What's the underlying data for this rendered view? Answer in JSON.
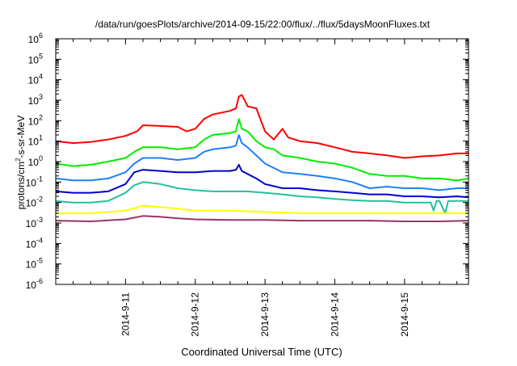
{
  "chart_data": {
    "type": "line",
    "title": "/data/run/goesPlots/archive/2014-09-15/22:00/flux/../flux/5daysMoonFluxes.txt",
    "xlabel": "Coordinated Universal Time (UTC)",
    "ylabel": {
      "base": "protons/cm",
      "sup": "2",
      "rest": "-s-sr-MeV"
    },
    "y_scale": "log",
    "ylim": [
      1e-06,
      1000000.0
    ],
    "y_ticks": [
      {
        "value": 1e-06,
        "base": "10",
        "exp": "-6"
      },
      {
        "value": 1e-05,
        "base": "10",
        "exp": "-5"
      },
      {
        "value": 0.0001,
        "base": "10",
        "exp": "-4"
      },
      {
        "value": 0.001,
        "base": "10",
        "exp": "-3"
      },
      {
        "value": 0.01,
        "base": "10",
        "exp": "-2"
      },
      {
        "value": 0.1,
        "base": "10",
        "exp": "-1"
      },
      {
        "value": 1.0,
        "base": "10",
        "exp": "0"
      },
      {
        "value": 10.0,
        "base": "10",
        "exp": "1"
      },
      {
        "value": 100.0,
        "base": "10",
        "exp": "2"
      },
      {
        "value": 1000.0,
        "base": "10",
        "exp": "3"
      },
      {
        "value": 10000.0,
        "base": "10",
        "exp": "4"
      },
      {
        "value": 100000.0,
        "base": "10",
        "exp": "5"
      },
      {
        "value": 1000000.0,
        "base": "10",
        "exp": "6"
      }
    ],
    "xlim": [
      "2014-09-10 00:00",
      "2014-09-15 22:00"
    ],
    "x_ticks": [
      {
        "date": "2014-09-11 00:00",
        "label": "2014-9-11"
      },
      {
        "date": "2014-09-12 00:00",
        "label": "2014-9-12"
      },
      {
        "date": "2014-09-13 00:00",
        "label": "2014-9-13"
      },
      {
        "date": "2014-09-14 00:00",
        "label": "2014-9-14"
      },
      {
        "date": "2014-09-15 00:00",
        "label": "2014-9-15"
      }
    ],
    "grid": false,
    "legend": "none",
    "series": [
      {
        "color": "#ff0000",
        "points": [
          [
            "2014-09-10 00:00",
            10
          ],
          [
            "2014-09-10 06:00",
            8
          ],
          [
            "2014-09-10 12:00",
            9
          ],
          [
            "2014-09-10 18:00",
            12
          ],
          [
            "2014-09-11 00:00",
            18
          ],
          [
            "2014-09-11 04:00",
            30
          ],
          [
            "2014-09-11 06:00",
            60
          ],
          [
            "2014-09-11 12:00",
            55
          ],
          [
            "2014-09-11 18:00",
            50
          ],
          [
            "2014-09-11 21:00",
            30
          ],
          [
            "2014-09-12 00:00",
            40
          ],
          [
            "2014-09-12 03:00",
            120
          ],
          [
            "2014-09-12 06:00",
            200
          ],
          [
            "2014-09-12 12:00",
            300
          ],
          [
            "2014-09-12 14:00",
            400
          ],
          [
            "2014-09-12 15:00",
            1500
          ],
          [
            "2014-09-12 16:00",
            1800
          ],
          [
            "2014-09-12 17:00",
            1000
          ],
          [
            "2014-09-12 18:00",
            500
          ],
          [
            "2014-09-12 21:00",
            400
          ],
          [
            "2014-09-13 00:00",
            30
          ],
          [
            "2014-09-13 03:00",
            12
          ],
          [
            "2014-09-13 06:00",
            40
          ],
          [
            "2014-09-13 08:00",
            15
          ],
          [
            "2014-09-13 12:00",
            10
          ],
          [
            "2014-09-13 18:00",
            8
          ],
          [
            "2014-09-14 00:00",
            5
          ],
          [
            "2014-09-14 06:00",
            3
          ],
          [
            "2014-09-14 12:00",
            2.5
          ],
          [
            "2014-09-14 18:00",
            2
          ],
          [
            "2014-09-15 00:00",
            1.5
          ],
          [
            "2014-09-15 06:00",
            1.8
          ],
          [
            "2014-09-15 12:00",
            2
          ],
          [
            "2014-09-15 18:00",
            2.5
          ],
          [
            "2014-09-15 22:00",
            2.5
          ]
        ]
      },
      {
        "color": "#00ee00",
        "points": [
          [
            "2014-09-10 00:00",
            0.8
          ],
          [
            "2014-09-10 06:00",
            0.6
          ],
          [
            "2014-09-10 12:00",
            0.7
          ],
          [
            "2014-09-10 18:00",
            1
          ],
          [
            "2014-09-11 00:00",
            1.5
          ],
          [
            "2014-09-11 03:00",
            3
          ],
          [
            "2014-09-11 06:00",
            5
          ],
          [
            "2014-09-11 12:00",
            5
          ],
          [
            "2014-09-11 18:00",
            4
          ],
          [
            "2014-09-12 00:00",
            5
          ],
          [
            "2014-09-12 03:00",
            12
          ],
          [
            "2014-09-12 06:00",
            20
          ],
          [
            "2014-09-12 12:00",
            25
          ],
          [
            "2014-09-12 14:00",
            30
          ],
          [
            "2014-09-12 15:00",
            120
          ],
          [
            "2014-09-12 16:00",
            40
          ],
          [
            "2014-09-12 18:00",
            30
          ],
          [
            "2014-09-12 21:00",
            10
          ],
          [
            "2014-09-13 00:00",
            5
          ],
          [
            "2014-09-13 03:00",
            4
          ],
          [
            "2014-09-13 06:00",
            2
          ],
          [
            "2014-09-13 12:00",
            1.5
          ],
          [
            "2014-09-13 18:00",
            1
          ],
          [
            "2014-09-14 00:00",
            0.8
          ],
          [
            "2014-09-14 06:00",
            0.5
          ],
          [
            "2014-09-14 12:00",
            0.25
          ],
          [
            "2014-09-14 18:00",
            0.2
          ],
          [
            "2014-09-15 00:00",
            0.2
          ],
          [
            "2014-09-15 06:00",
            0.15
          ],
          [
            "2014-09-15 12:00",
            0.15
          ],
          [
            "2014-09-15 18:00",
            0.12
          ],
          [
            "2014-09-15 22:00",
            0.15
          ]
        ]
      },
      {
        "color": "#1e7fff",
        "points": [
          [
            "2014-09-10 00:00",
            0.15
          ],
          [
            "2014-09-10 06:00",
            0.12
          ],
          [
            "2014-09-10 12:00",
            0.12
          ],
          [
            "2014-09-10 18:00",
            0.15
          ],
          [
            "2014-09-11 00:00",
            0.3
          ],
          [
            "2014-09-11 03:00",
            0.8
          ],
          [
            "2014-09-11 06:00",
            1.5
          ],
          [
            "2014-09-11 12:00",
            1.5
          ],
          [
            "2014-09-11 18:00",
            1.2
          ],
          [
            "2014-09-12 00:00",
            1.5
          ],
          [
            "2014-09-12 03:00",
            3
          ],
          [
            "2014-09-12 06:00",
            4
          ],
          [
            "2014-09-12 12:00",
            5
          ],
          [
            "2014-09-12 14:00",
            6
          ],
          [
            "2014-09-12 15:00",
            20
          ],
          [
            "2014-09-12 16:00",
            8
          ],
          [
            "2014-09-12 18:00",
            5
          ],
          [
            "2014-09-12 21:00",
            2
          ],
          [
            "2014-09-13 00:00",
            0.8
          ],
          [
            "2014-09-13 06:00",
            0.3
          ],
          [
            "2014-09-13 12:00",
            0.25
          ],
          [
            "2014-09-13 18:00",
            0.2
          ],
          [
            "2014-09-14 00:00",
            0.15
          ],
          [
            "2014-09-14 06:00",
            0.1
          ],
          [
            "2014-09-14 12:00",
            0.05
          ],
          [
            "2014-09-14 18:00",
            0.06
          ],
          [
            "2014-09-15 00:00",
            0.05
          ],
          [
            "2014-09-15 06:00",
            0.05
          ],
          [
            "2014-09-15 12:00",
            0.04
          ],
          [
            "2014-09-15 18:00",
            0.05
          ],
          [
            "2014-09-15 22:00",
            0.05
          ]
        ]
      },
      {
        "color": "#0000cc",
        "points": [
          [
            "2014-09-10 00:00",
            0.035
          ],
          [
            "2014-09-10 06:00",
            0.03
          ],
          [
            "2014-09-10 12:00",
            0.03
          ],
          [
            "2014-09-10 18:00",
            0.035
          ],
          [
            "2014-09-11 00:00",
            0.08
          ],
          [
            "2014-09-11 03:00",
            0.3
          ],
          [
            "2014-09-11 06:00",
            0.4
          ],
          [
            "2014-09-11 12:00",
            0.35
          ],
          [
            "2014-09-11 18:00",
            0.3
          ],
          [
            "2014-09-12 00:00",
            0.3
          ],
          [
            "2014-09-12 06:00",
            0.35
          ],
          [
            "2014-09-12 12:00",
            0.35
          ],
          [
            "2014-09-12 14:00",
            0.4
          ],
          [
            "2014-09-12 15:00",
            0.7
          ],
          [
            "2014-09-12 16:00",
            0.35
          ],
          [
            "2014-09-12 18:00",
            0.25
          ],
          [
            "2014-09-12 21:00",
            0.15
          ],
          [
            "2014-09-13 00:00",
            0.08
          ],
          [
            "2014-09-13 06:00",
            0.05
          ],
          [
            "2014-09-13 12:00",
            0.05
          ],
          [
            "2014-09-13 18:00",
            0.04
          ],
          [
            "2014-09-14 00:00",
            0.035
          ],
          [
            "2014-09-14 06:00",
            0.03
          ],
          [
            "2014-09-14 12:00",
            0.025
          ],
          [
            "2014-09-14 18:00",
            0.025
          ],
          [
            "2014-09-15 00:00",
            0.02
          ],
          [
            "2014-09-15 06:00",
            0.02
          ],
          [
            "2014-09-15 12:00",
            0.018
          ],
          [
            "2014-09-15 18:00",
            0.02
          ],
          [
            "2014-09-15 22:00",
            0.018
          ]
        ]
      },
      {
        "color": "#20c0a0",
        "points": [
          [
            "2014-09-10 00:00",
            0.012
          ],
          [
            "2014-09-10 06:00",
            0.01
          ],
          [
            "2014-09-10 12:00",
            0.01
          ],
          [
            "2014-09-10 18:00",
            0.012
          ],
          [
            "2014-09-11 00:00",
            0.03
          ],
          [
            "2014-09-11 03:00",
            0.07
          ],
          [
            "2014-09-11 06:00",
            0.1
          ],
          [
            "2014-09-11 12:00",
            0.08
          ],
          [
            "2014-09-11 18:00",
            0.05
          ],
          [
            "2014-09-12 00:00",
            0.04
          ],
          [
            "2014-09-12 06:00",
            0.035
          ],
          [
            "2014-09-12 12:00",
            0.035
          ],
          [
            "2014-09-12 18:00",
            0.035
          ],
          [
            "2014-09-13 00:00",
            0.03
          ],
          [
            "2014-09-13 06:00",
            0.025
          ],
          [
            "2014-09-13 12:00",
            0.02
          ],
          [
            "2014-09-13 18:00",
            0.018
          ],
          [
            "2014-09-14 00:00",
            0.015
          ],
          [
            "2014-09-14 06:00",
            0.013
          ],
          [
            "2014-09-14 12:00",
            0.012
          ],
          [
            "2014-09-14 18:00",
            0.012
          ],
          [
            "2014-09-15 00:00",
            0.01
          ],
          [
            "2014-09-15 06:00",
            0.01
          ],
          [
            "2014-09-15 09:00",
            0.01
          ],
          [
            "2014-09-15 10:00",
            0.004
          ],
          [
            "2014-09-15 11:00",
            0.012
          ],
          [
            "2014-09-15 12:00",
            0.012
          ],
          [
            "2014-09-15 14:00",
            0.003
          ],
          [
            "2014-09-15 15:00",
            0.012
          ],
          [
            "2014-09-15 18:00",
            0.012
          ],
          [
            "2014-09-15 22:00",
            0.012
          ]
        ]
      },
      {
        "color": "#ffff00",
        "points": [
          [
            "2014-09-10 00:00",
            0.003
          ],
          [
            "2014-09-10 12:00",
            0.003
          ],
          [
            "2014-09-11 00:00",
            0.004
          ],
          [
            "2014-09-11 06:00",
            0.007
          ],
          [
            "2014-09-11 12:00",
            0.006
          ],
          [
            "2014-09-11 18:00",
            0.005
          ],
          [
            "2014-09-12 00:00",
            0.004
          ],
          [
            "2014-09-12 12:00",
            0.004
          ],
          [
            "2014-09-13 00:00",
            0.0035
          ],
          [
            "2014-09-13 12:00",
            0.003
          ],
          [
            "2014-09-14 00:00",
            0.003
          ],
          [
            "2014-09-14 12:00",
            0.003
          ],
          [
            "2014-09-15 00:00",
            0.003
          ],
          [
            "2014-09-15 12:00",
            0.003
          ],
          [
            "2014-09-15 22:00",
            0.003
          ]
        ]
      },
      {
        "color": "#993366",
        "points": [
          [
            "2014-09-10 00:00",
            0.0013
          ],
          [
            "2014-09-10 12:00",
            0.0012
          ],
          [
            "2014-09-11 00:00",
            0.0015
          ],
          [
            "2014-09-11 06:00",
            0.0022
          ],
          [
            "2014-09-11 12:00",
            0.002
          ],
          [
            "2014-09-11 18:00",
            0.0017
          ],
          [
            "2014-09-12 00:00",
            0.0015
          ],
          [
            "2014-09-12 12:00",
            0.0014
          ],
          [
            "2014-09-13 00:00",
            0.0014
          ],
          [
            "2014-09-13 12:00",
            0.0013
          ],
          [
            "2014-09-14 00:00",
            0.0013
          ],
          [
            "2014-09-14 12:00",
            0.0013
          ],
          [
            "2014-09-15 00:00",
            0.0012
          ],
          [
            "2014-09-15 12:00",
            0.0012
          ],
          [
            "2014-09-15 22:00",
            0.0013
          ]
        ]
      }
    ]
  }
}
